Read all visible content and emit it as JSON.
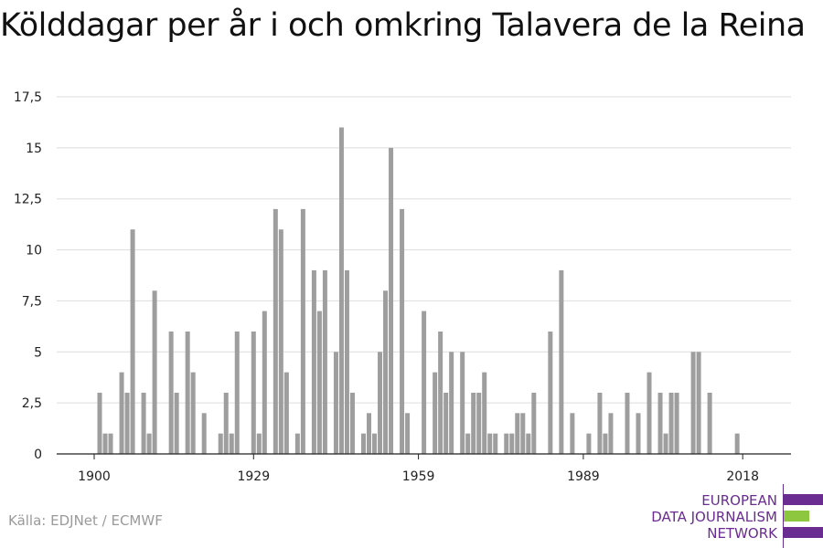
{
  "title": "Kölddagar per år i och omkring Talavera de la Reina",
  "source": "Källa: EDJNet / ECMWF",
  "logo": {
    "lines": [
      "EUROPEAN",
      "DATA JOURNALISM",
      "NETWORK"
    ],
    "colors": {
      "purple": "#6a2c91",
      "green": "#8dc63f"
    }
  },
  "colors": {
    "bar": "#9e9e9e",
    "grid": "#dddddd",
    "axis": "#222222"
  },
  "chart_data": {
    "type": "bar",
    "xlim": [
      1900,
      2018
    ],
    "ylim": [
      0,
      17.5
    ],
    "y_ticks": [
      0,
      2.5,
      5,
      7.5,
      10,
      12.5,
      15,
      17.5
    ],
    "y_tick_labels": [
      "0",
      "2,5",
      "5",
      "7,5",
      "10",
      "12,5",
      "15",
      "17,5"
    ],
    "x_ticks": [
      1900,
      1929,
      1959,
      1989,
      2018
    ],
    "x_tick_labels": [
      "1900",
      "1929",
      "1959",
      "1989",
      "2018"
    ],
    "grid": true,
    "x": [
      1901,
      1902,
      1903,
      1905,
      1906,
      1907,
      1909,
      1910,
      1911,
      1914,
      1915,
      1917,
      1918,
      1920,
      1923,
      1924,
      1925,
      1926,
      1929,
      1930,
      1931,
      1933,
      1934,
      1935,
      1937,
      1938,
      1940,
      1941,
      1942,
      1944,
      1945,
      1946,
      1947,
      1949,
      1950,
      1951,
      1952,
      1953,
      1954,
      1956,
      1957,
      1960,
      1962,
      1963,
      1964,
      1965,
      1967,
      1968,
      1969,
      1970,
      1971,
      1972,
      1973,
      1975,
      1976,
      1977,
      1978,
      1979,
      1980,
      1983,
      1985,
      1987,
      1990,
      1992,
      1993,
      1994,
      1997,
      1999,
      2001,
      2003,
      2004,
      2005,
      2006,
      2009,
      2010,
      2012,
      2017
    ],
    "values": [
      3,
      1,
      1,
      4,
      3,
      11,
      3,
      1,
      8,
      6,
      3,
      6,
      4,
      2,
      1,
      3,
      1,
      6,
      6,
      1,
      7,
      12,
      11,
      4,
      1,
      12,
      9,
      7,
      9,
      5,
      16,
      9,
      3,
      1,
      2,
      1,
      5,
      8,
      15,
      12,
      2,
      7,
      4,
      6,
      3,
      5,
      5,
      1,
      3,
      3,
      4,
      1,
      1,
      1,
      1,
      2,
      2,
      1,
      3,
      6,
      9,
      2,
      1,
      3,
      1,
      2,
      3,
      2,
      4,
      3,
      1,
      3,
      3,
      5,
      5,
      3,
      1
    ]
  }
}
